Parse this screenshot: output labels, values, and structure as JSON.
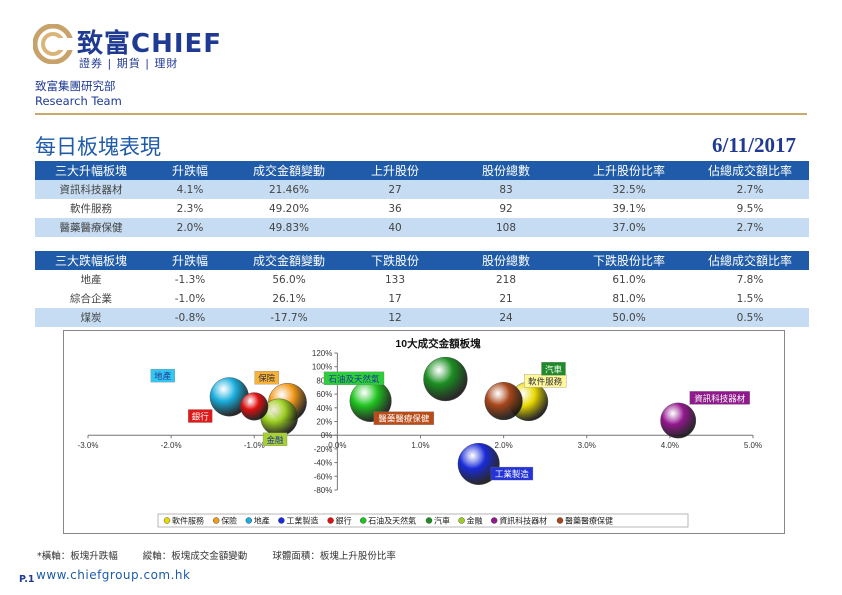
{
  "brand": {
    "name": "致富CHIEF",
    "tagline": "證券 | 期貨 | 理財"
  },
  "dept": {
    "name": "致富集團研究部",
    "team": "Research Team"
  },
  "page": {
    "title": "每日板塊表現",
    "date": "6/11/2017",
    "number": "P.1",
    "website": "www.chiefgroup.com.hk"
  },
  "top_gainers": {
    "headers": [
      "三大升幅板塊",
      "升跌幅",
      "成交金額變動",
      "上升股份",
      "股份總數",
      "上升股份比率",
      "佔總成交額比率"
    ],
    "rows": [
      [
        "資訊科技器材",
        "4.1%",
        "21.46%",
        "27",
        "83",
        "32.5%",
        "2.7%"
      ],
      [
        "軟件服務",
        "2.3%",
        "49.20%",
        "36",
        "92",
        "39.1%",
        "9.5%"
      ],
      [
        "醫藥醫療保健",
        "2.0%",
        "49.83%",
        "40",
        "108",
        "37.0%",
        "2.7%"
      ]
    ]
  },
  "top_losers": {
    "headers": [
      "三大跌幅板塊",
      "升跌幅",
      "成交金額變動",
      "下跌股份",
      "股份總數",
      "下跌股份比率",
      "佔總成交額比率"
    ],
    "rows": [
      [
        "地產",
        "-1.3%",
        "56.0%",
        "133",
        "218",
        "61.0%",
        "7.8%"
      ],
      [
        "綜合企業",
        "-1.0%",
        "26.1%",
        "17",
        "21",
        "81.0%",
        "1.5%"
      ],
      [
        "煤炭",
        "-0.8%",
        "-17.7%",
        "12",
        "24",
        "50.0%",
        "0.5%"
      ]
    ]
  },
  "footnote": {
    "x": "*橫軸：板塊升跌幅",
    "y": "縱軸：板塊成交金額變動",
    "size": "球體面積：板塊上升股份比率"
  },
  "chart_data": {
    "type": "bubble",
    "title": "10大成交金額板塊",
    "xlim": [
      -3.0,
      5.0
    ],
    "ylim": [
      -80,
      120
    ],
    "x_ticks": [
      "-3.0%",
      "-2.0%",
      "-1.0%",
      "0.0%",
      "1.0%",
      "2.0%",
      "3.0%",
      "4.0%",
      "5.0%"
    ],
    "y_ticks": [
      "-80%",
      "-60%",
      "-40%",
      "-20%",
      "0%",
      "20%",
      "40%",
      "60%",
      "80%",
      "100%",
      "120%"
    ],
    "legend_position": "bottom",
    "series": [
      {
        "name": "軟件服務",
        "x": 2.3,
        "y": 49.2,
        "size": 39.1,
        "color": "#e8d800",
        "label_color": "#fff79a",
        "label_text_color": "#333333"
      },
      {
        "name": "保險",
        "x": -0.6,
        "y": 48,
        "size": 38,
        "color": "#f29a1a",
        "label_color": "#f7b23a",
        "label_text_color": "#333333"
      },
      {
        "name": "地產",
        "x": -1.3,
        "y": 56.0,
        "size": 39,
        "color": "#1aaede",
        "label_color": "#33c6f0",
        "label_text_color": "#1f3a93"
      },
      {
        "name": "工業製造",
        "x": 1.7,
        "y": -42,
        "size": 45,
        "color": "#1a2bd8",
        "label_color": "#2333d8",
        "label_text_color": "#ffffff"
      },
      {
        "name": "銀行",
        "x": -1.0,
        "y": 42,
        "size": 20,
        "color": "#e01010",
        "label_color": "#e01a1a",
        "label_text_color": "#ffffff"
      },
      {
        "name": "石油及天然氣",
        "x": 0.4,
        "y": 50,
        "size": 45,
        "color": "#1fc51f",
        "label_color": "#2ece3a",
        "label_text_color": "#1f3a93"
      },
      {
        "name": "汽車",
        "x": 1.3,
        "y": 82,
        "size": 50,
        "color": "#1c8f22",
        "label_color": "#1f8a28",
        "label_text_color": "#ffffff"
      },
      {
        "name": "金融",
        "x": -0.7,
        "y": 26,
        "size": 36,
        "color": "#9ccf22",
        "label_color": "#a8d032",
        "label_text_color": "#1f3a93"
      },
      {
        "name": "資訊科技器材",
        "x": 4.1,
        "y": 21.46,
        "size": 32.5,
        "color": "#93178f",
        "label_color": "#8f1a8b",
        "label_text_color": "#ffffff"
      },
      {
        "name": "醫藥醫療保健",
        "x": 2.0,
        "y": 49.83,
        "size": 37.0,
        "color": "#a8461a",
        "label_color": "#b94d1a",
        "label_text_color": "#ffffff"
      }
    ]
  }
}
